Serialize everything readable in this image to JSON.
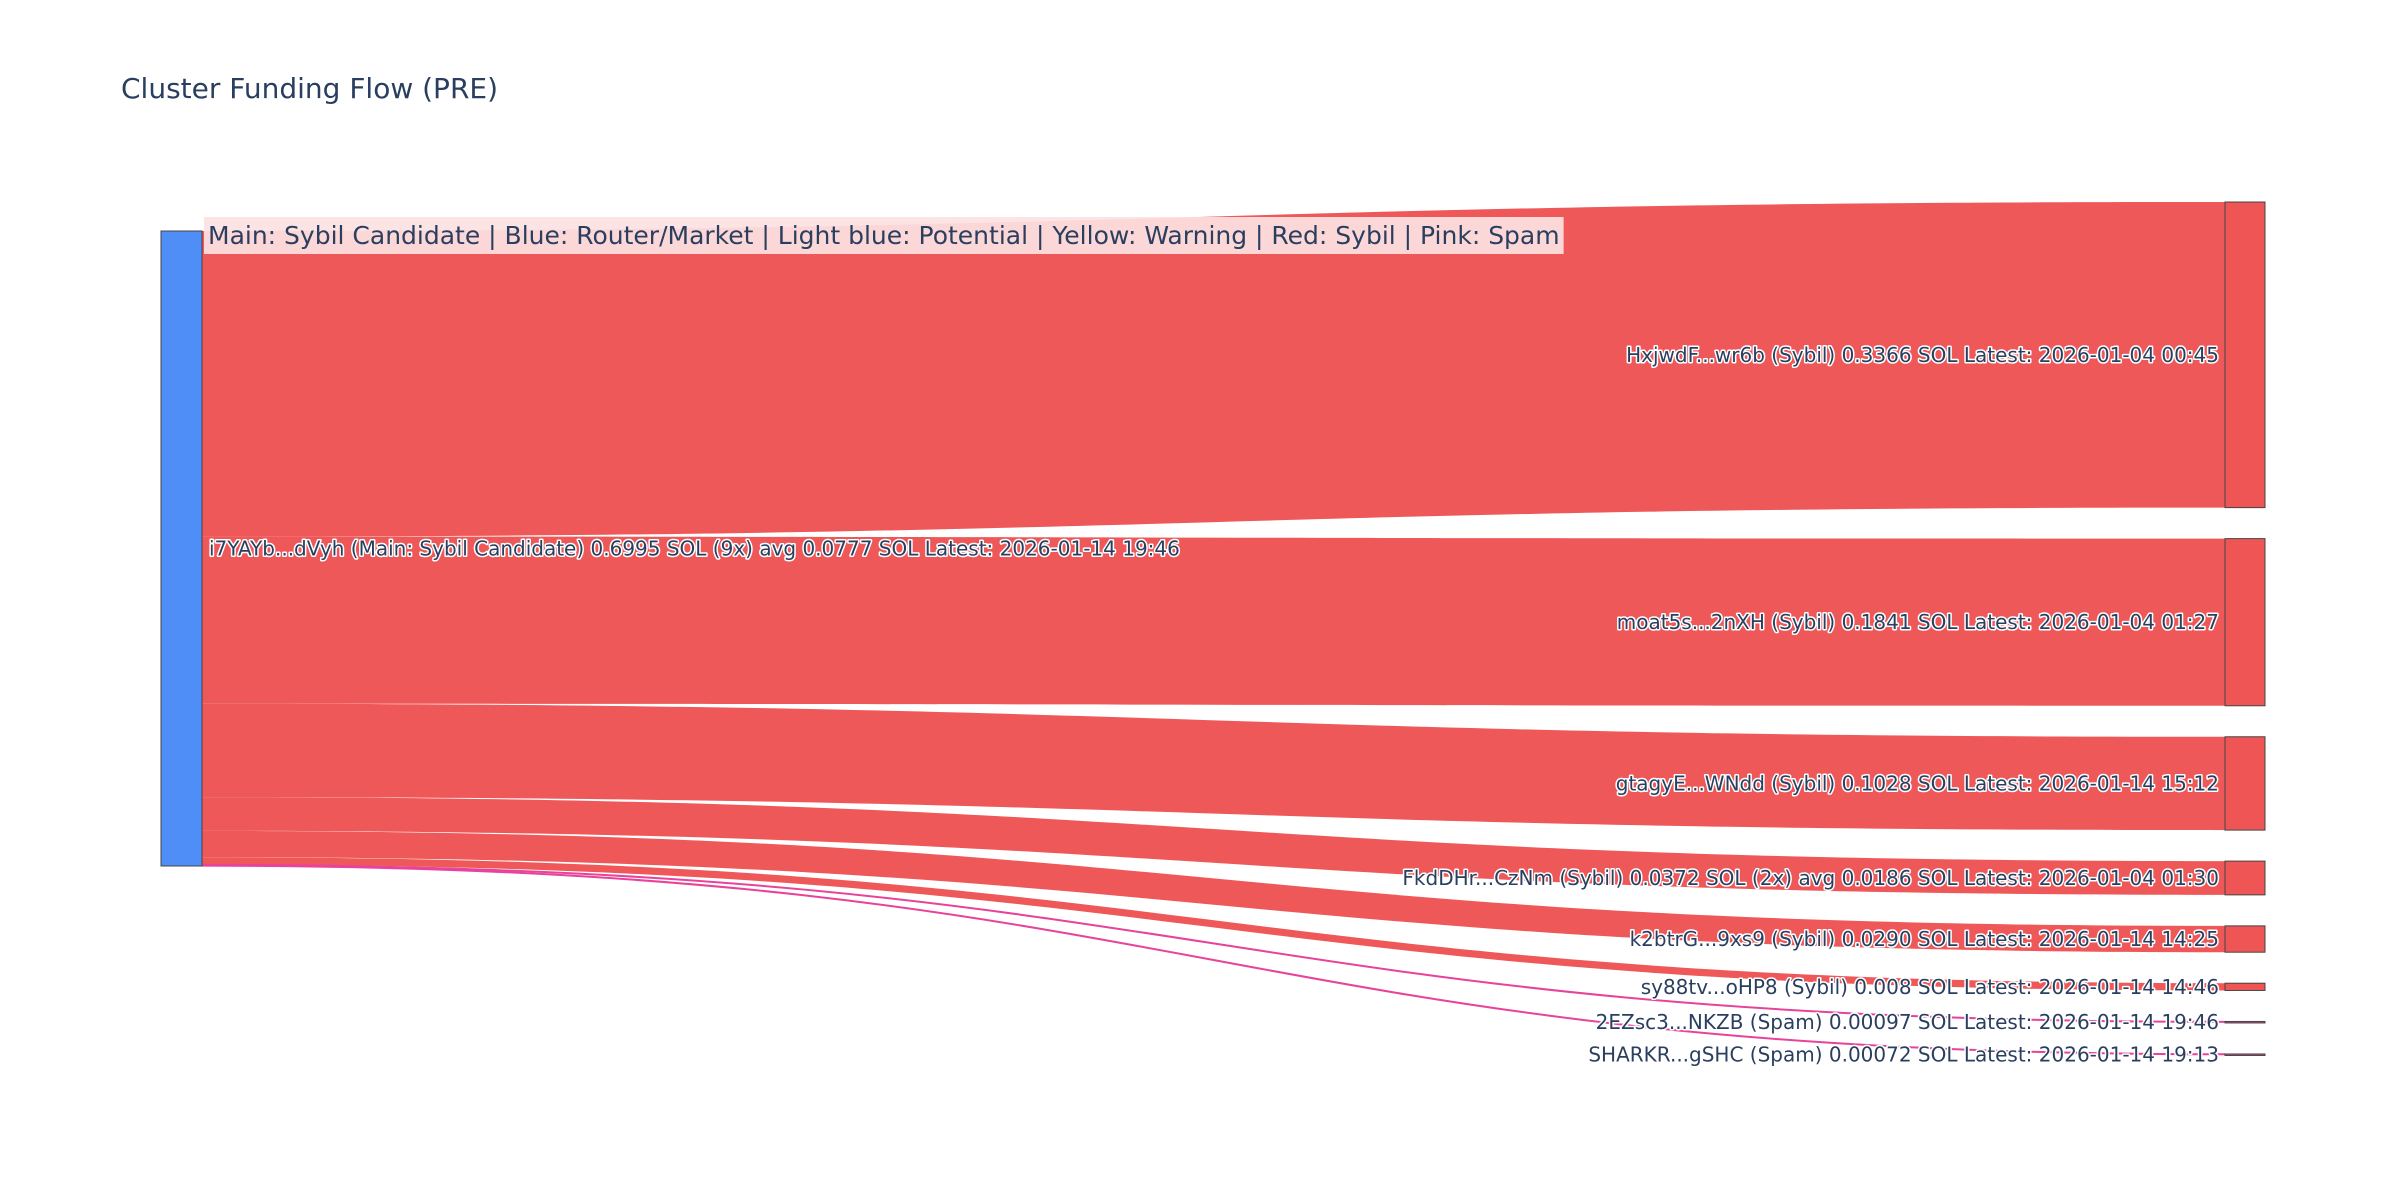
{
  "chart": {
    "title": "Cluster Funding Flow (PRE)",
    "annotation": "Main: Sybil Candidate  |  Blue: Router/Market | Light blue: Potential | Yellow: Warning | Red: Sybil | Pink: Spam"
  },
  "colors": {
    "source_node": "#4f8ef7",
    "sybil_link": "#ef5555",
    "sybil_node": "#ef5555",
    "spam_link": "#e8439a",
    "spam_node": "#e8439a",
    "node_border": "#444444",
    "annotation_bg": "#fde2e2",
    "text": "#2a3f5f"
  },
  "chart_data": {
    "type": "sankey",
    "title": "Cluster Funding Flow (PRE)",
    "source": {
      "label": "i7YAYb...dVyh (Main: Sybil Candidate) 0.6995 SOL (9x) avg 0.0777 SOL Latest: 2026-01-14 19:46",
      "value": 0.6995
    },
    "targets": [
      {
        "label": "HxjwdF...wr6b (Sybil) 0.3366 SOL Latest: 2026-01-04 00:45",
        "value": 0.3366,
        "category": "Sybil"
      },
      {
        "label": "moat5s...2nXH (Sybil) 0.1841 SOL Latest: 2026-01-04 01:27",
        "value": 0.1841,
        "category": "Sybil"
      },
      {
        "label": "gtagyE...WNdd (Sybil) 0.1028 SOL Latest: 2026-01-14 15:12",
        "value": 0.1028,
        "category": "Sybil"
      },
      {
        "label": "FkdDHr...CzNm (Sybil) 0.0372 SOL (2x) avg 0.0186 SOL Latest: 2026-01-04 01:30",
        "value": 0.0372,
        "category": "Sybil"
      },
      {
        "label": "k2btrG...9xs9 (Sybil) 0.0290 SOL Latest: 2026-01-14 14:25",
        "value": 0.029,
        "category": "Sybil"
      },
      {
        "label": "sy88tv...oHP8 (Sybil) 0.008 SOL Latest: 2026-01-14 14:46",
        "value": 0.008,
        "category": "Sybil"
      },
      {
        "label": "2EZsc3...NKZB (Spam) 0.00097 SOL Latest: 2026-01-14 19:46",
        "value": 0.00097,
        "category": "Spam"
      },
      {
        "label": "SHARKR...gSHC (Spam) 0.00072 SOL Latest: 2026-01-14 19:13",
        "value": 0.00072,
        "category": "Spam"
      }
    ]
  }
}
